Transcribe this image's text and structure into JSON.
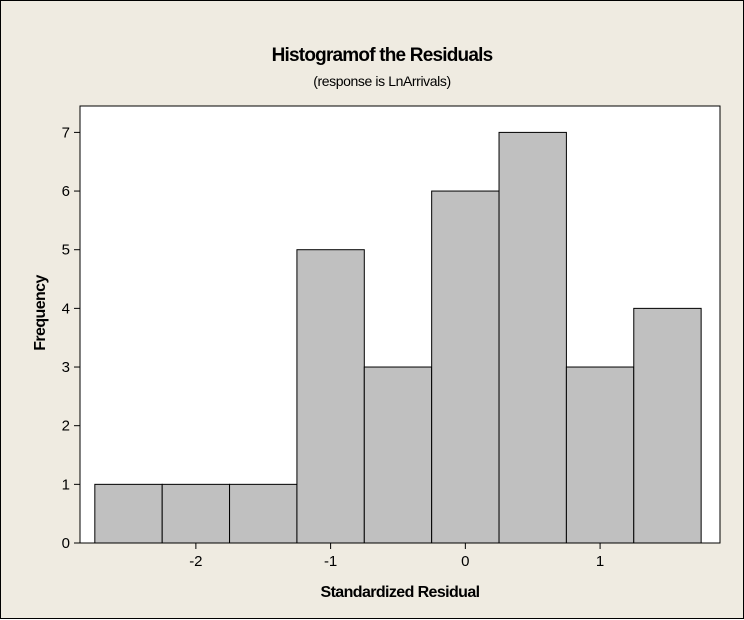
{
  "chart_data": {
    "type": "bar",
    "subtype": "histogram",
    "title": "Histogramof the Residuals",
    "subtitle": "(response is LnArrivals)",
    "xlabel": "Standardized Residual",
    "ylabel": "Frequency",
    "bin_width": 0.5,
    "bins": [
      {
        "start": -2.75,
        "end": -2.25,
        "count": 1
      },
      {
        "start": -2.25,
        "end": -1.75,
        "count": 1
      },
      {
        "start": -1.75,
        "end": -1.25,
        "count": 1
      },
      {
        "start": -1.25,
        "end": -0.75,
        "count": 5
      },
      {
        "start": -0.75,
        "end": -0.25,
        "count": 3
      },
      {
        "start": -0.25,
        "end": 0.25,
        "count": 6
      },
      {
        "start": 0.25,
        "end": 0.75,
        "count": 7
      },
      {
        "start": 0.75,
        "end": 1.25,
        "count": 3
      },
      {
        "start": 1.25,
        "end": 1.75,
        "count": 4
      }
    ],
    "xticks": [
      -2,
      -1,
      0,
      1
    ],
    "yticks": [
      0,
      1,
      2,
      3,
      4,
      5,
      6,
      7
    ],
    "xlim": [
      -2.86,
      1.89
    ],
    "ylim": [
      0,
      7.45
    ],
    "grid": false,
    "legend": "none",
    "colors": {
      "bar_fill": "#c0c0c0",
      "bar_edge": "#000000",
      "plot_background": "#ffffff",
      "figure_background": "#efebe1"
    }
  }
}
